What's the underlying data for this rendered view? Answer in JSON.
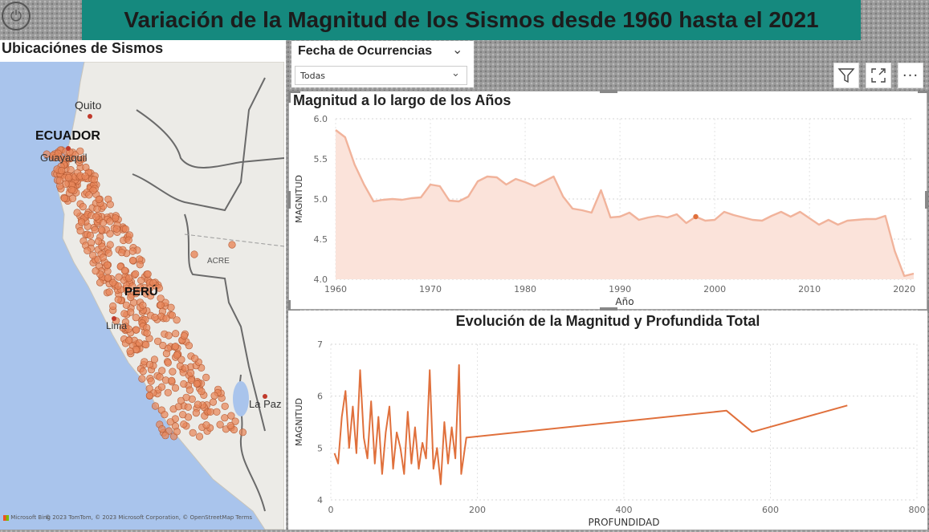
{
  "header": {
    "title": "Variación de la Magnitud de los Sismos desde 1960 hasta el 2021"
  },
  "map": {
    "title": "Ubicaciónes de Sismos",
    "labels": {
      "quito": "Quito",
      "ecuador": "ECUADOR",
      "guayaquil": "Guayaquil",
      "acre": "ACRE",
      "peru": "PERÚ",
      "lima": "Lima",
      "la_paz": "La Paz"
    },
    "attribution": "© 2023 TomTom, © 2023 Microsoft Corporation, © OpenStreetMap  Terms",
    "ms_logo_text": "Microsoft Bing",
    "marker_color": "#e8875a"
  },
  "filter": {
    "label": "Fecha de Ocurrencias",
    "value": "Todas"
  },
  "toolbar": {
    "icons": [
      "filter-icon",
      "focus-mode-icon",
      "more-options-icon"
    ]
  },
  "colors": {
    "accent": "#15897e",
    "line1": "#f1b39b",
    "area1": "#fbe3da",
    "line2": "#e0703c"
  },
  "chart_data": [
    {
      "type": "area",
      "title": "Magnitud a lo largo de los Años",
      "xlabel": "Año",
      "ylabel": "MAGNITUD",
      "xlim": [
        1960,
        2021
      ],
      "ylim": [
        4.0,
        6.0
      ],
      "xticks": [
        1960,
        1970,
        1980,
        1990,
        2000,
        2010,
        2020
      ],
      "yticks": [
        "4.0",
        "4.5",
        "5.0",
        "5.5",
        "6.0"
      ],
      "x": [
        1960,
        1961,
        1962,
        1963,
        1964,
        1965,
        1966,
        1967,
        1968,
        1969,
        1970,
        1971,
        1972,
        1973,
        1974,
        1975,
        1976,
        1977,
        1978,
        1979,
        1980,
        1981,
        1982,
        1983,
        1984,
        1985,
        1986,
        1987,
        1988,
        1989,
        1990,
        1991,
        1992,
        1993,
        1994,
        1995,
        1996,
        1997,
        1998,
        1999,
        2000,
        2001,
        2002,
        2003,
        2004,
        2005,
        2006,
        2007,
        2008,
        2009,
        2010,
        2011,
        2012,
        2013,
        2014,
        2015,
        2016,
        2017,
        2018,
        2019,
        2020,
        2021
      ],
      "y": [
        5.86,
        5.77,
        5.43,
        5.18,
        4.97,
        4.99,
        5.0,
        4.99,
        5.01,
        5.02,
        5.18,
        5.16,
        4.98,
        4.97,
        5.03,
        5.22,
        5.28,
        5.27,
        5.18,
        5.25,
        5.21,
        5.16,
        5.22,
        5.28,
        5.03,
        4.88,
        4.86,
        4.83,
        5.11,
        4.77,
        4.78,
        4.83,
        4.74,
        4.77,
        4.79,
        4.77,
        4.81,
        4.7,
        4.78,
        4.73,
        4.74,
        4.84,
        4.8,
        4.77,
        4.74,
        4.73,
        4.79,
        4.84,
        4.78,
        4.84,
        4.76,
        4.68,
        4.74,
        4.68,
        4.73,
        4.74,
        4.75,
        4.75,
        4.79,
        4.35,
        4.04,
        4.07
      ],
      "highlight_x": 1998,
      "grid": true
    },
    {
      "type": "line",
      "title": "Evolución de la Magnitud y Profundida Total",
      "xlabel": "PROFUNDIDAD",
      "ylabel": "MAGNITUD",
      "xlim": [
        0,
        800
      ],
      "ylim": [
        4,
        7
      ],
      "xticks": [
        0,
        200,
        400,
        600,
        800
      ],
      "yticks": [
        "4",
        "5",
        "6",
        "7"
      ],
      "x": [
        5,
        10,
        15,
        20,
        25,
        30,
        35,
        40,
        45,
        50,
        55,
        60,
        65,
        70,
        75,
        80,
        85,
        90,
        95,
        100,
        105,
        110,
        115,
        120,
        125,
        130,
        135,
        140,
        145,
        150,
        155,
        160,
        165,
        170,
        175,
        178,
        185,
        540,
        575,
        705
      ],
      "y": [
        4.9,
        4.7,
        5.6,
        6.1,
        5.0,
        5.8,
        4.9,
        6.5,
        5.2,
        4.8,
        5.9,
        4.7,
        5.6,
        4.5,
        5.3,
        5.8,
        4.6,
        5.3,
        5.0,
        4.5,
        5.7,
        4.7,
        5.4,
        4.6,
        5.1,
        4.8,
        6.5,
        4.6,
        5.0,
        4.3,
        5.5,
        4.7,
        5.4,
        4.8,
        6.6,
        4.5,
        5.2,
        5.72,
        5.31,
        5.82
      ],
      "grid": true
    }
  ]
}
